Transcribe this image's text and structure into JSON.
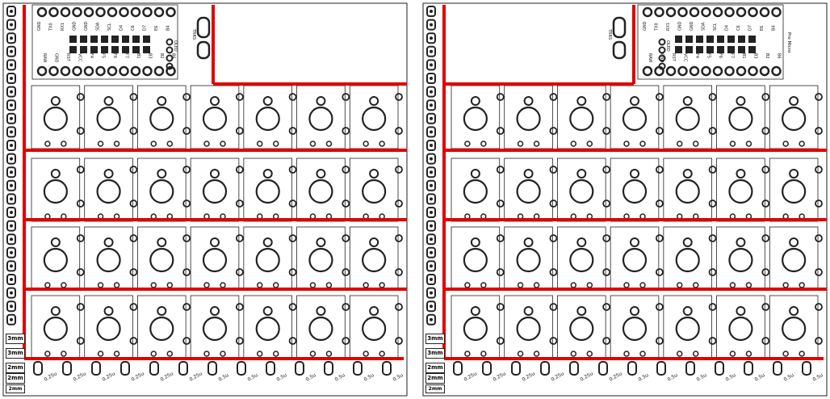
{
  "boards": [
    {
      "id": "left",
      "pro_micro_label": "Pro Micro"
    },
    {
      "id": "right",
      "pro_micro_label": "Pro Micro"
    }
  ],
  "labels": {
    "trrs": "TRRS",
    "oled": "OLED",
    "pro_micro": "Pro Micro"
  },
  "pins_top": [
    "GND",
    "TX0",
    "RX1",
    "GND",
    "GND",
    "SDA",
    "SCL",
    "D4",
    "C6",
    "D7",
    "E6",
    "B4",
    "B5"
  ],
  "pins_bottom": [
    "RAW",
    "GND",
    "RST",
    "VCC",
    "F4",
    "F5",
    "F6",
    "F7",
    "B1",
    "B3",
    "B2",
    "B6"
  ],
  "grid": {
    "rows": 4,
    "cols": 7
  },
  "spacer_labels": [
    "3mm",
    "3mm",
    "2mm",
    "2mm",
    "2mm"
  ],
  "bottom_labels": [
    "0.25u",
    "0.25u",
    "0.25u",
    "0.25u",
    "0.25u",
    "0.25u",
    "0.5u",
    "0.5u",
    "0.5u",
    "0.5u",
    "0.5u",
    "0.5u",
    "0.5u"
  ],
  "colors": {
    "cut_line": "#e00000",
    "outline": "#222222"
  }
}
